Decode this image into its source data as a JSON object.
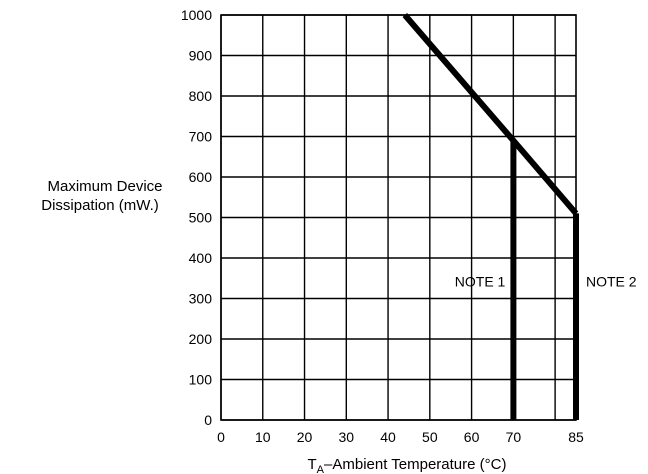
{
  "chart_data": {
    "type": "line",
    "title": "",
    "xlabel": {
      "symbol": "T",
      "subscript": "A",
      "text": "–Ambient Temperature (°C)"
    },
    "ylabel": [
      "Maximum Device",
      "Dissipation (mW.)"
    ],
    "xlim": [
      0,
      85
    ],
    "ylim": [
      0,
      1000
    ],
    "grid": true,
    "x_grid": [
      0,
      10,
      20,
      30,
      40,
      50,
      60,
      70,
      80
    ],
    "y_grid": [
      0,
      100,
      200,
      300,
      400,
      500,
      600,
      700,
      800,
      900,
      1000
    ],
    "x_ticks": [
      "0",
      "10",
      "20",
      "30",
      "40",
      "50",
      "60",
      "70",
      "85"
    ],
    "x_tick_values": [
      0,
      10,
      20,
      30,
      40,
      50,
      60,
      70,
      85
    ],
    "y_ticks": [
      "0",
      "100",
      "200",
      "300",
      "400",
      "500",
      "600",
      "700",
      "800",
      "900",
      "1000"
    ],
    "y_tick_values": [
      0,
      100,
      200,
      300,
      400,
      500,
      600,
      700,
      800,
      900,
      1000
    ],
    "series": [
      {
        "key": "derating",
        "points": [
          [
            44,
            1000
          ],
          [
            70,
            690
          ],
          [
            85,
            510
          ]
        ]
      },
      {
        "key": "note1-limit",
        "points": [
          [
            70,
            0
          ],
          [
            70,
            690
          ]
        ]
      },
      {
        "key": "note2-limit",
        "points": [
          [
            85,
            0
          ],
          [
            85,
            510
          ]
        ]
      }
    ],
    "annotations": [
      {
        "text": "NOTE 1",
        "x": 70,
        "y": 330,
        "anchor": "end"
      },
      {
        "text": "NOTE 2",
        "x": 85,
        "y": 330,
        "anchor": "start"
      }
    ],
    "colors": {
      "line": "#000000",
      "grid": "#000000"
    }
  }
}
